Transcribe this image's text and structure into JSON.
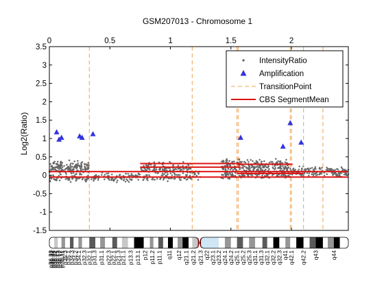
{
  "chart_data": {
    "type": "scatter",
    "title": "GSM207013 - Chromosome 1",
    "xlabel": "",
    "ylabel": "Log2(Ratio)",
    "xlim": [
      0,
      2.47
    ],
    "ylim": [
      -1.5,
      3.5
    ],
    "x_ticks": [
      "0",
      "0.5",
      "1",
      "1.5",
      "2"
    ],
    "x_tick_values": [
      0,
      0.5,
      1,
      1.5,
      2
    ],
    "y_ticks": [
      "-1.5",
      "-1",
      "-0.5",
      "0",
      "0.5",
      "1",
      "1.5",
      "2",
      "2.5",
      "3",
      "3.5"
    ],
    "y_tick_values": [
      -1.5,
      -1,
      -0.5,
      0,
      0.5,
      1,
      1.5,
      2,
      2.5,
      3,
      3.5
    ],
    "x_axis_position": "top",
    "grid": false,
    "legend_position": "top-right",
    "legend": [
      {
        "label": "IntensityRatio",
        "marker": "dot",
        "color": "#666666"
      },
      {
        "label": "Amplification",
        "marker": "triangle",
        "color": "#3333dd"
      },
      {
        "label": "TransitionPoint",
        "marker": "dashed-line",
        "color": "#f0a050"
      },
      {
        "label": "CBS SegmentMean",
        "marker": "line",
        "color": "#dd1111"
      }
    ],
    "series": [
      {
        "name": "Amplification",
        "x": [
          0.06,
          0.08,
          0.1,
          0.25,
          0.27,
          0.36,
          1.58,
          1.93,
          1.99,
          2.08
        ],
        "y": [
          1.17,
          0.97,
          1.02,
          1.06,
          1.02,
          1.12,
          1.02,
          0.78,
          1.42,
          0.89
        ]
      },
      {
        "name": "TransitionPoint",
        "x": [
          0.33,
          1.18,
          1.55,
          1.56,
          1.99,
          2.0,
          2.1,
          2.26
        ]
      },
      {
        "name": "CBS SegmentMean",
        "segments": [
          {
            "x0": 0.0,
            "x1": 2.47,
            "y": 0.1
          },
          {
            "x0": 0.0,
            "x1": 2.47,
            "y": -0.05
          },
          {
            "x0": 0.75,
            "x1": 1.58,
            "y": 0.32
          },
          {
            "x0": 0.75,
            "x1": 1.58,
            "y": 0.22
          },
          {
            "x0": 1.55,
            "x1": 2.01,
            "y": 0.3
          },
          {
            "x0": 1.55,
            "x1": 2.1,
            "y": 0.05
          }
        ]
      }
    ],
    "intensity_clusters": [
      {
        "x0": 0.0,
        "x1": 0.33,
        "y_center": 0.2,
        "spread": 0.13,
        "count": 190
      },
      {
        "x0": 0.0,
        "x1": 0.33,
        "y_center": -0.08,
        "spread": 0.06,
        "count": 70
      },
      {
        "x0": 0.33,
        "x1": 0.75,
        "y_center": -0.05,
        "spread": 0.08,
        "count": 110
      },
      {
        "x0": 0.75,
        "x1": 1.18,
        "y_center": 0.18,
        "spread": 0.12,
        "count": 150
      },
      {
        "x0": 0.75,
        "x1": 1.18,
        "y_center": -0.07,
        "spread": 0.06,
        "count": 60
      },
      {
        "x0": 1.18,
        "x1": 1.25,
        "y_center": 0.0,
        "spread": 0.1,
        "count": 15
      },
      {
        "x0": 1.42,
        "x1": 1.99,
        "y_center": 0.25,
        "spread": 0.13,
        "count": 260
      },
      {
        "x0": 1.42,
        "x1": 1.99,
        "y_center": 0.02,
        "spread": 0.08,
        "count": 150
      },
      {
        "x0": 1.99,
        "x1": 2.47,
        "y_center": 0.1,
        "spread": 0.1,
        "count": 180
      }
    ],
    "ideogram": {
      "centromere_x": 1.23,
      "heterochromatin": {
        "x0": 1.25,
        "x1": 1.4
      },
      "bands": [
        {
          "x0": 0.0,
          "x1": 0.04,
          "stain": "gneg"
        },
        {
          "x0": 0.04,
          "x1": 0.07,
          "stain": "gpos25"
        },
        {
          "x0": 0.07,
          "x1": 0.1,
          "stain": "gneg"
        },
        {
          "x0": 0.1,
          "x1": 0.13,
          "stain": "gpos50"
        },
        {
          "x0": 0.13,
          "x1": 0.17,
          "stain": "gneg"
        },
        {
          "x0": 0.17,
          "x1": 0.2,
          "stain": "gpos75"
        },
        {
          "x0": 0.2,
          "x1": 0.24,
          "stain": "gneg"
        },
        {
          "x0": 0.24,
          "x1": 0.27,
          "stain": "gpos50"
        },
        {
          "x0": 0.27,
          "x1": 0.33,
          "stain": "gneg"
        },
        {
          "x0": 0.33,
          "x1": 0.38,
          "stain": "gpos75"
        },
        {
          "x0": 0.38,
          "x1": 0.42,
          "stain": "gneg"
        },
        {
          "x0": 0.42,
          "x1": 0.46,
          "stain": "gpos50"
        },
        {
          "x0": 0.46,
          "x1": 0.52,
          "stain": "gneg"
        },
        {
          "x0": 0.52,
          "x1": 0.56,
          "stain": "gpos75"
        },
        {
          "x0": 0.56,
          "x1": 0.6,
          "stain": "gneg"
        },
        {
          "x0": 0.6,
          "x1": 0.65,
          "stain": "gpos25"
        },
        {
          "x0": 0.65,
          "x1": 0.7,
          "stain": "gneg"
        },
        {
          "x0": 0.7,
          "x1": 0.78,
          "stain": "gpos100"
        },
        {
          "x0": 0.78,
          "x1": 0.83,
          "stain": "gneg"
        },
        {
          "x0": 0.83,
          "x1": 0.86,
          "stain": "gpos50"
        },
        {
          "x0": 0.86,
          "x1": 0.9,
          "stain": "gneg"
        },
        {
          "x0": 0.9,
          "x1": 0.94,
          "stain": "gpos75"
        },
        {
          "x0": 0.94,
          "x1": 0.98,
          "stain": "gneg"
        },
        {
          "x0": 0.98,
          "x1": 1.02,
          "stain": "gpos100"
        },
        {
          "x0": 1.02,
          "x1": 1.06,
          "stain": "gneg"
        },
        {
          "x0": 1.06,
          "x1": 1.1,
          "stain": "gpos50"
        },
        {
          "x0": 1.1,
          "x1": 1.15,
          "stain": "gpos100"
        },
        {
          "x0": 1.15,
          "x1": 1.18,
          "stain": "gneg"
        },
        {
          "x0": 1.18,
          "x1": 1.23,
          "stain": "gpos25"
        },
        {
          "x0": 1.23,
          "x1": 1.25,
          "stain": "acen"
        },
        {
          "x0": 1.25,
          "x1": 1.4,
          "stain": "gvar"
        },
        {
          "x0": 1.4,
          "x1": 1.45,
          "stain": "gneg"
        },
        {
          "x0": 1.45,
          "x1": 1.5,
          "stain": "gpos50"
        },
        {
          "x0": 1.5,
          "x1": 1.55,
          "stain": "gneg"
        },
        {
          "x0": 1.55,
          "x1": 1.6,
          "stain": "gpos75"
        },
        {
          "x0": 1.6,
          "x1": 1.65,
          "stain": "gneg"
        },
        {
          "x0": 1.65,
          "x1": 1.7,
          "stain": "gpos50"
        },
        {
          "x0": 1.7,
          "x1": 1.76,
          "stain": "gneg"
        },
        {
          "x0": 1.76,
          "x1": 1.8,
          "stain": "gpos75"
        },
        {
          "x0": 1.8,
          "x1": 1.85,
          "stain": "gneg"
        },
        {
          "x0": 1.85,
          "x1": 1.9,
          "stain": "gpos100"
        },
        {
          "x0": 1.9,
          "x1": 1.95,
          "stain": "gneg"
        },
        {
          "x0": 1.95,
          "x1": 1.99,
          "stain": "gpos50"
        },
        {
          "x0": 1.99,
          "x1": 2.04,
          "stain": "gneg"
        },
        {
          "x0": 2.04,
          "x1": 2.1,
          "stain": "gpos100"
        },
        {
          "x0": 2.1,
          "x1": 2.15,
          "stain": "gneg"
        },
        {
          "x0": 2.15,
          "x1": 2.2,
          "stain": "gpos75"
        },
        {
          "x0": 2.2,
          "x1": 2.26,
          "stain": "gpos100"
        },
        {
          "x0": 2.26,
          "x1": 2.3,
          "stain": "gneg"
        },
        {
          "x0": 2.3,
          "x1": 2.35,
          "stain": "gpos50"
        },
        {
          "x0": 2.35,
          "x1": 2.4,
          "stain": "gpos100"
        },
        {
          "x0": 2.4,
          "x1": 2.47,
          "stain": "gneg"
        }
      ],
      "band_labels": [
        {
          "x": 0.01,
          "text": "p36.33"
        },
        {
          "x": 0.02,
          "text": "p36.32"
        },
        {
          "x": 0.03,
          "text": "p36.31"
        },
        {
          "x": 0.045,
          "text": "p36.22"
        },
        {
          "x": 0.06,
          "text": "p36.21"
        },
        {
          "x": 0.075,
          "text": "p36.13"
        },
        {
          "x": 0.09,
          "text": "p36.12"
        },
        {
          "x": 0.105,
          "text": "p36.11"
        },
        {
          "x": 0.13,
          "text": "p35.3"
        },
        {
          "x": 0.155,
          "text": "p35.1"
        },
        {
          "x": 0.185,
          "text": "p34.3"
        },
        {
          "x": 0.215,
          "text": "p34.2"
        },
        {
          "x": 0.245,
          "text": "p34.1"
        },
        {
          "x": 0.29,
          "text": "p32.3"
        },
        {
          "x": 0.33,
          "text": "p32.1"
        },
        {
          "x": 0.37,
          "text": "p31.3"
        },
        {
          "x": 0.43,
          "text": "p31.1"
        },
        {
          "x": 0.49,
          "text": "p22.3"
        },
        {
          "x": 0.53,
          "text": "p22.1"
        },
        {
          "x": 0.57,
          "text": "p21.3"
        },
        {
          "x": 0.61,
          "text": "p21.1"
        },
        {
          "x": 0.67,
          "text": "p13.3"
        },
        {
          "x": 0.73,
          "text": "p13.1"
        },
        {
          "x": 0.79,
          "text": "p12"
        },
        {
          "x": 0.85,
          "text": "p11.2"
        },
        {
          "x": 0.91,
          "text": "p11.1"
        },
        {
          "x": 0.99,
          "text": "q11"
        },
        {
          "x": 1.07,
          "text": "q12"
        },
        {
          "x": 1.13,
          "text": "q21.1"
        },
        {
          "x": 1.19,
          "text": "q21.2"
        },
        {
          "x": 1.25,
          "text": "q21.3"
        },
        {
          "x": 1.3,
          "text": "q22"
        },
        {
          "x": 1.35,
          "text": "q23.1"
        },
        {
          "x": 1.4,
          "text": "q23.2"
        },
        {
          "x": 1.45,
          "text": "q24.1"
        },
        {
          "x": 1.5,
          "text": "q24.2"
        },
        {
          "x": 1.55,
          "text": "q25.1"
        },
        {
          "x": 1.6,
          "text": "q25.2"
        },
        {
          "x": 1.65,
          "text": "q25.3"
        },
        {
          "x": 1.7,
          "text": "q31.1"
        },
        {
          "x": 1.75,
          "text": "q31.3"
        },
        {
          "x": 1.8,
          "text": "q32.1"
        },
        {
          "x": 1.85,
          "text": "q32.2"
        },
        {
          "x": 1.9,
          "text": "q32.3"
        },
        {
          "x": 1.95,
          "text": "q41"
        },
        {
          "x": 2.0,
          "text": "q42.1"
        },
        {
          "x": 2.1,
          "text": "q42.2"
        },
        {
          "x": 2.2,
          "text": "q43"
        },
        {
          "x": 2.35,
          "text": "q44"
        }
      ]
    }
  }
}
